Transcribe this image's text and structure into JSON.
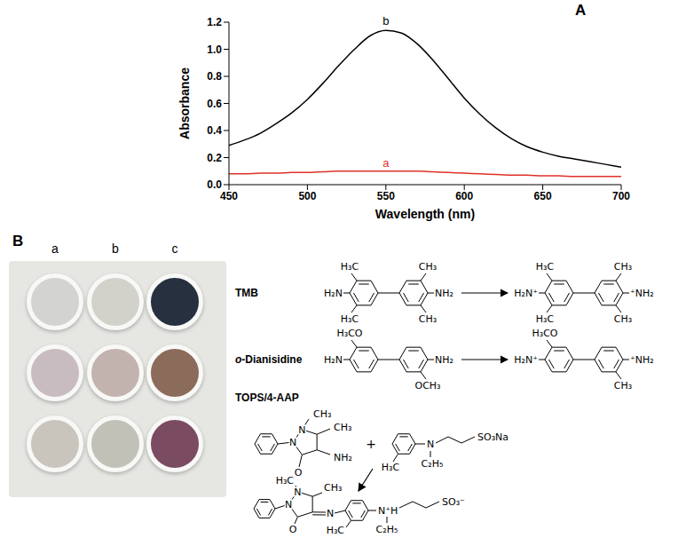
{
  "panel_labels": [
    "A",
    "B"
  ],
  "chart_data": {
    "type": "line",
    "x_label": "Wavelength (nm)",
    "y_label": "Absorbance",
    "x": [
      450,
      460,
      470,
      480,
      490,
      500,
      510,
      520,
      530,
      540,
      550,
      560,
      570,
      580,
      590,
      600,
      610,
      620,
      630,
      640,
      650,
      660,
      670,
      680,
      690,
      700
    ],
    "series": [
      {
        "name": "a",
        "color": "#e0312b",
        "values": [
          0.08,
          0.08,
          0.085,
          0.085,
          0.09,
          0.09,
          0.095,
          0.1,
          0.1,
          0.1,
          0.1,
          0.1,
          0.1,
          0.095,
          0.09,
          0.085,
          0.08,
          0.075,
          0.07,
          0.07,
          0.065,
          0.065,
          0.06,
          0.06,
          0.06,
          0.06
        ]
      },
      {
        "name": "b",
        "color": "#000000",
        "values": [
          0.29,
          0.33,
          0.38,
          0.45,
          0.53,
          0.63,
          0.75,
          0.88,
          1.0,
          1.1,
          1.14,
          1.12,
          1.04,
          0.92,
          0.78,
          0.64,
          0.52,
          0.42,
          0.34,
          0.28,
          0.24,
          0.21,
          0.19,
          0.17,
          0.15,
          0.13
        ]
      }
    ],
    "xlim": [
      450,
      700
    ],
    "xticks": [
      450,
      500,
      550,
      600,
      650,
      700
    ],
    "ylim": [
      0,
      1.2
    ],
    "yticks": [
      {
        "value": 0,
        "label": "0.0"
      },
      {
        "value": 0.2,
        "label": "0.2"
      },
      {
        "value": 0.4,
        "label": "0.4"
      },
      {
        "value": 0.6,
        "label": "0.6"
      },
      {
        "value": 0.8,
        "label": "0.8"
      },
      {
        "value": 1.0,
        "label": "1.0"
      },
      {
        "value": 1.2,
        "label": "1.2"
      }
    ],
    "annotations": [
      {
        "text": "a",
        "x": 550,
        "y": 0.1
      },
      {
        "text": "b",
        "x": 550,
        "y": 1.15
      }
    ],
    "grid": false
  },
  "well_plate": {
    "columns": [
      "a",
      "b",
      "c"
    ],
    "colors": [
      [
        "#d3d3d1",
        "#d2d2cb",
        "#26303f"
      ],
      [
        "#c8bcc1",
        "#c3b3ae",
        "#8b6b5a"
      ],
      [
        "#c9c5bd",
        "#c2c1b8",
        "#7b4b62"
      ]
    ]
  },
  "reactions": [
    {
      "name": "TMB",
      "reactant": [
        "H₃C",
        "CH₃",
        "H₂N",
        "NH₂",
        "H₃C",
        "CH₃"
      ],
      "product": [
        "H₃C",
        "CH₃",
        "H₂N⁺",
        "⁺NH₂",
        "H₃C",
        "CH₃"
      ]
    },
    {
      "name": "o-Dianisidine",
      "reactant": [
        "H₃CO",
        "H₂N",
        "NH₂",
        "OCH₃"
      ],
      "product": [
        "H₃CO",
        "H₂N⁺",
        "⁺NH₂",
        "CH₃"
      ]
    },
    {
      "name": "TOPS/4-AAP",
      "reactants": [
        [
          "N",
          "N",
          "CH₃",
          "CH₃",
          "O",
          "NH₂"
        ],
        [
          "H₃C",
          "N",
          "C₂H₅",
          "SO₃Na"
        ]
      ],
      "plus": "+",
      "product": [
        "H₃C",
        "N",
        "N",
        "CH₃",
        "O",
        "N",
        "H₃C",
        "N⁺H",
        "C₂H₅",
        "SO₃⁻"
      ]
    }
  ]
}
